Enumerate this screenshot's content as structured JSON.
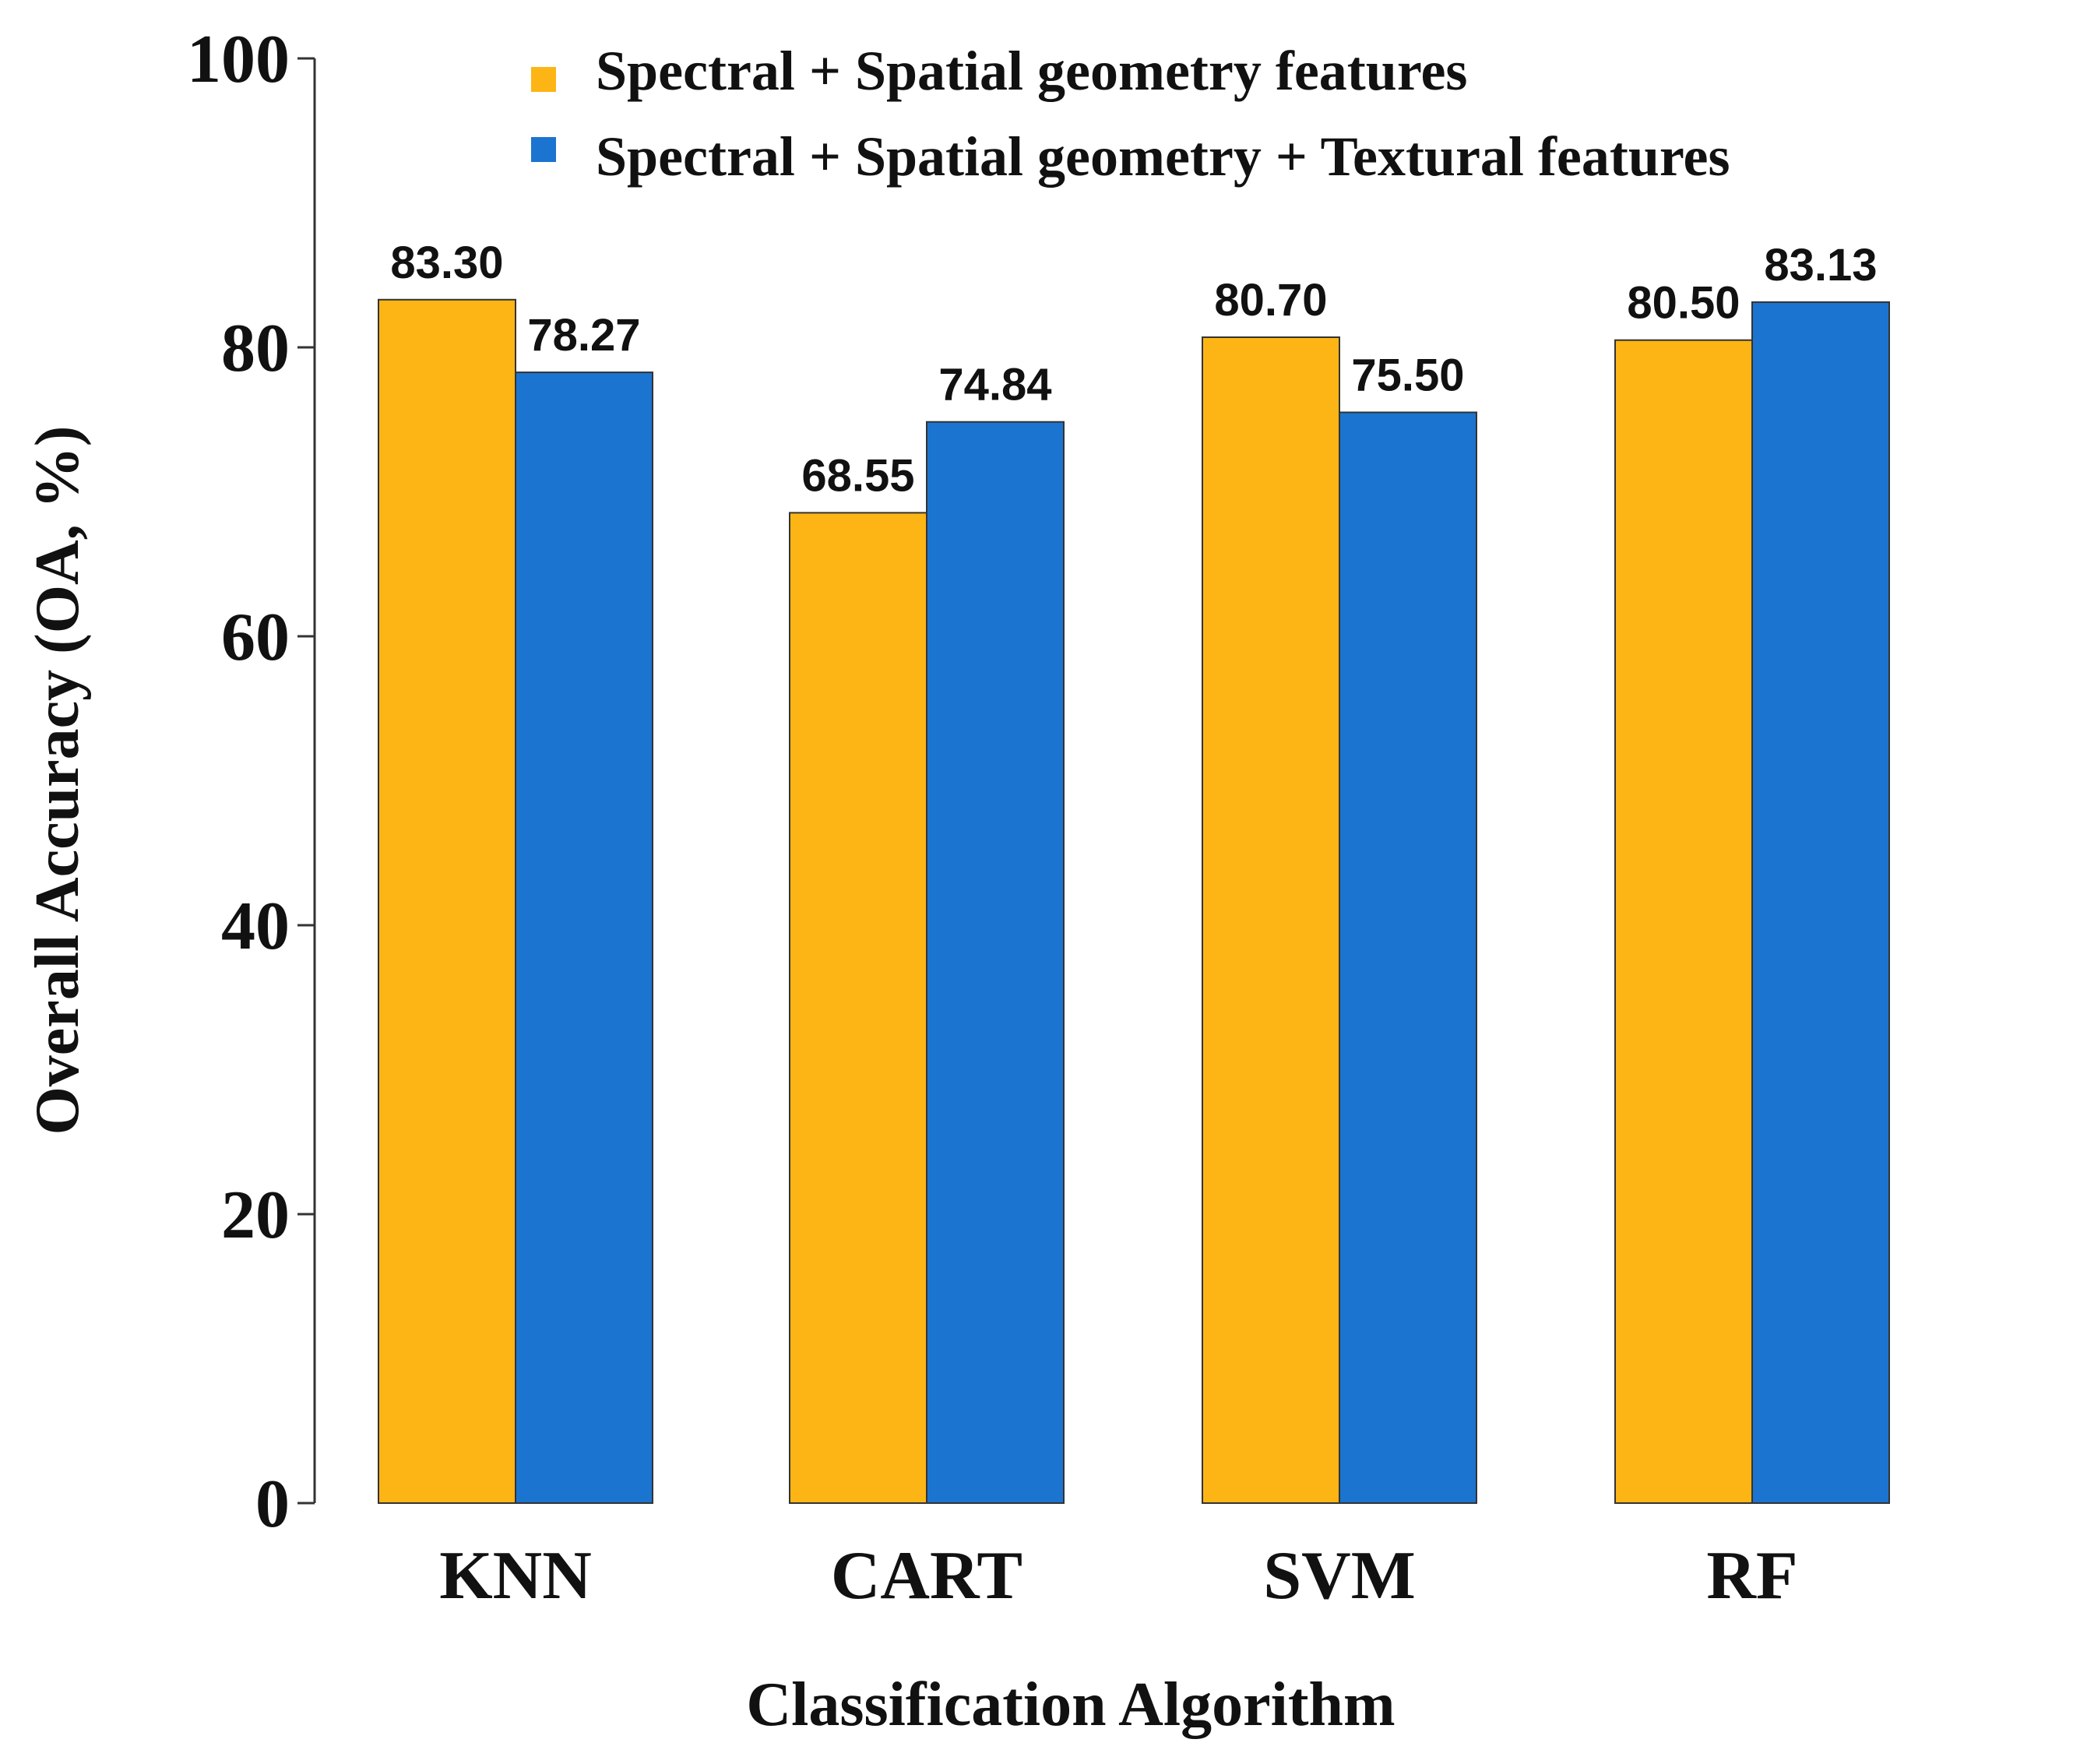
{
  "chart_data": {
    "type": "bar",
    "title": "",
    "xlabel": "Classification Algorithm",
    "ylabel": "Overall Accuracy  (OA, %)",
    "ylim": [
      0,
      100
    ],
    "yticks": [
      "0",
      "20",
      "40",
      "60",
      "80",
      "100"
    ],
    "categories": [
      "KNN",
      "CART",
      "SVM",
      "RF"
    ],
    "series": [
      {
        "name": "Spectral + Spatial geometry features",
        "color": "#FDB515",
        "values": [
          83.3,
          68.55,
          80.7,
          80.5
        ],
        "labels": [
          "83.30",
          "68.55",
          "80.70",
          "80.50"
        ]
      },
      {
        "name": "Spectral + Spatial geometry + Textural features",
        "color": "#1B74CF",
        "values": [
          78.27,
          74.84,
          75.5,
          83.13
        ],
        "labels": [
          "78.27",
          "74.84",
          "75.50",
          "83.13"
        ]
      }
    ],
    "legend_position": "top-right",
    "grid": false
  }
}
